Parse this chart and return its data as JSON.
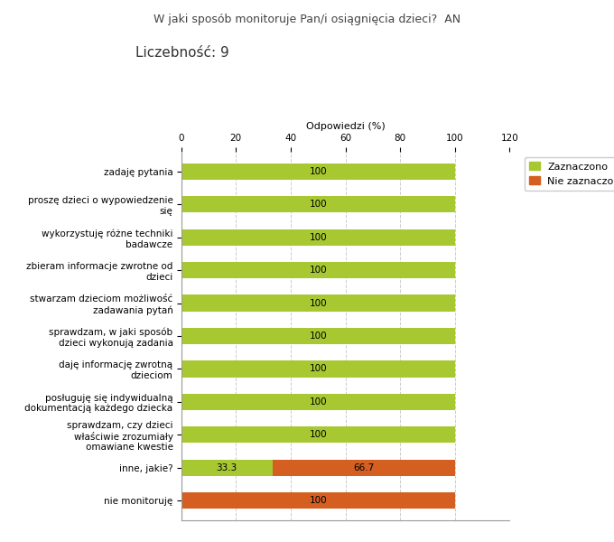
{
  "title": "W jaki sposób monitoruje Pan/i osiągnięcia dzieci?  AN",
  "subtitle": "Liczebność: 9",
  "xlabel": "Odpowiedzi (%)",
  "xlim": [
    0,
    120
  ],
  "xticks": [
    0,
    20,
    40,
    60,
    80,
    100,
    120
  ],
  "categories": [
    "zadaję pytania",
    "proszę dzieci o wypowiedzenie\nsię",
    "wykorzystuję różne techniki\nbadawcze",
    "zbieram informacje zwrotne od\ndzieci",
    "stwarzam dzieciom możliwość\nzadawania pytań",
    "sprawdzam, w jaki sposób\ndzieci wykonują zadania",
    "daję informację zwrotną\ndzieciom",
    "posługuję się indywidualną\ndokumentacją każdego dziecka",
    "sprawdzam, czy dzieci\nwłaściwie zrozumiały\nomawiane kwestie",
    "inne, jakie?",
    "nie monitoruję"
  ],
  "zaznaczono": [
    100,
    100,
    100,
    100,
    100,
    100,
    100,
    100,
    100,
    33.3,
    0
  ],
  "nie_zaznaczono": [
    0,
    0,
    0,
    0,
    0,
    0,
    0,
    0,
    0,
    66.7,
    100
  ],
  "color_zaznaczono": "#a8c832",
  "color_nie_zaznaczono": "#d45f20",
  "legend_zaznaczono": "Zaznaczono",
  "legend_nie_zaznaczono": "Nie zaznaczono",
  "bar_height": 0.5,
  "background_color": "#ffffff",
  "grid_color": "#cccccc",
  "title_fontsize": 9,
  "subtitle_fontsize": 11,
  "axis_label_fontsize": 8,
  "tick_fontsize": 7.5,
  "bar_label_fontsize": 7.5
}
